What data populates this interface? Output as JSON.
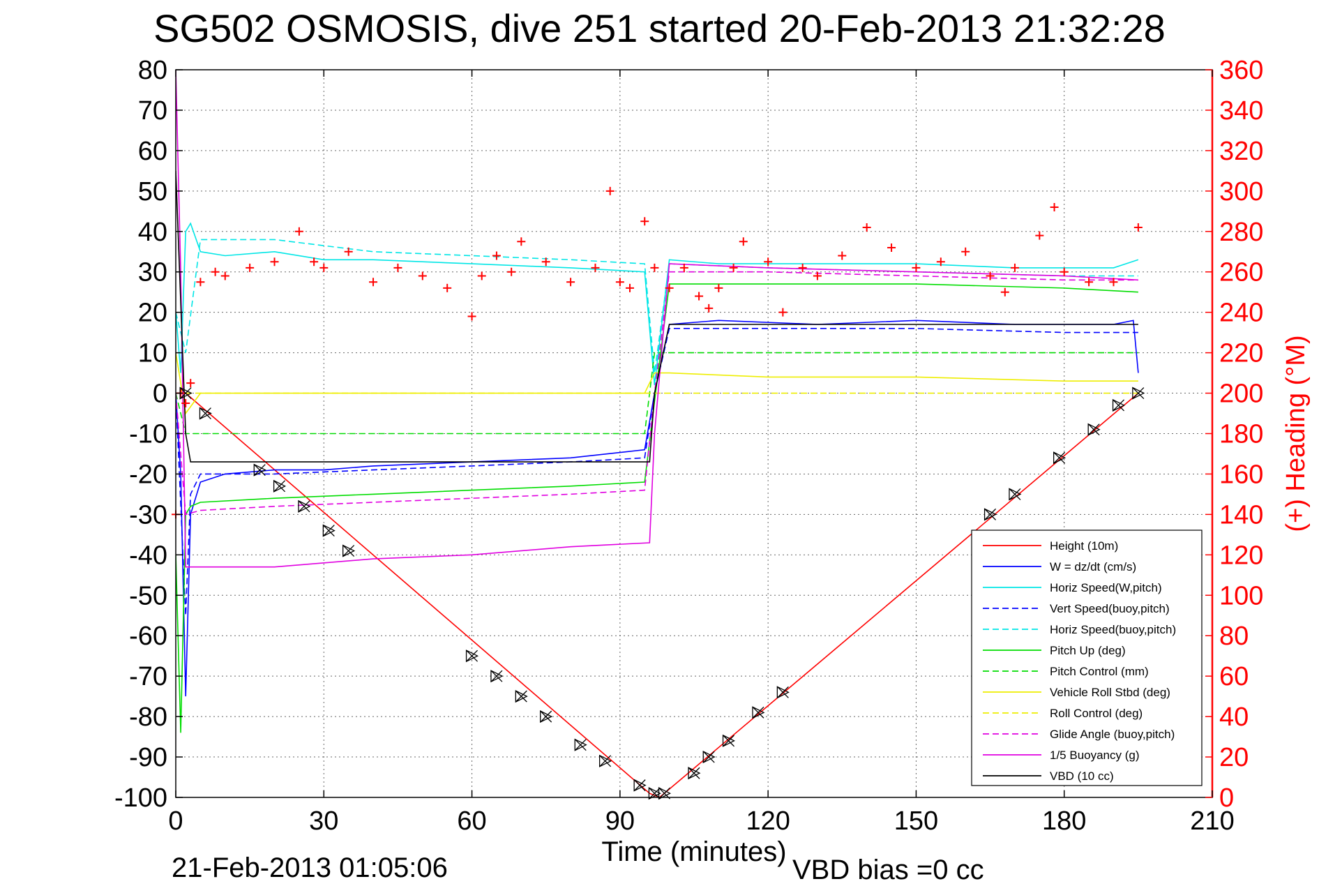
{
  "title": "SG502 OSMOSIS, dive 251 started 20-Feb-2013 21:32:28",
  "footer": {
    "timestamp": "21-Feb-2013 01:05:06",
    "vbd_bias": "VBD bias =0 cc"
  },
  "chart_data": {
    "type": "line",
    "title": "SG502 OSMOSIS, dive 251 started 20-Feb-2013 21:32:28",
    "xlabel": "Time (minutes)",
    "ylabel": "",
    "ylabel_right": "(+) Heading (°M)",
    "xlim": [
      0,
      210
    ],
    "ylim": [
      -100,
      80
    ],
    "ylim_right": [
      0,
      360
    ],
    "xticks": [
      0,
      30,
      60,
      90,
      120,
      150,
      180,
      210
    ],
    "yticks": [
      -100,
      -90,
      -80,
      -70,
      -60,
      -50,
      -40,
      -30,
      -20,
      -10,
      0,
      10,
      20,
      30,
      40,
      50,
      60,
      70,
      80
    ],
    "yticks_right": [
      0,
      20,
      40,
      60,
      80,
      100,
      120,
      140,
      160,
      180,
      200,
      220,
      240,
      260,
      280,
      300,
      320,
      340,
      360
    ],
    "grid": true,
    "legend_position": "bottom-right",
    "series": [
      {
        "name": "Height (10m)",
        "color": "#ff0000",
        "style": "solid",
        "x": [
          0,
          2,
          96,
          98,
          195
        ],
        "y": [
          0,
          0,
          -99,
          -100,
          0
        ]
      },
      {
        "name": "W = dz/dt (cm/s)",
        "color": "#0000ff",
        "style": "solid",
        "x": [
          0,
          1,
          2,
          3,
          5,
          10,
          20,
          30,
          40,
          60,
          80,
          95,
          97,
          100,
          110,
          130,
          150,
          170,
          190,
          194,
          195
        ],
        "y": [
          0,
          -20,
          -75,
          -30,
          -22,
          -20,
          -19,
          -19,
          -18,
          -17,
          -16,
          -14,
          0,
          17,
          18,
          17,
          18,
          17,
          17,
          18,
          5
        ]
      },
      {
        "name": "Horiz Speed(W,pitch)",
        "color": "#00e6e6",
        "style": "solid",
        "x": [
          0,
          1,
          2,
          3,
          5,
          10,
          20,
          30,
          40,
          60,
          80,
          95,
          97,
          100,
          110,
          130,
          150,
          170,
          190,
          195
        ],
        "y": [
          20,
          5,
          40,
          42,
          35,
          34,
          35,
          33,
          33,
          32,
          31,
          30,
          2,
          33,
          32,
          32,
          32,
          31,
          31,
          33
        ]
      },
      {
        "name": "Vert Speed(buoy,pitch)",
        "color": "#0000ff",
        "style": "dashed",
        "x": [
          0,
          2,
          3,
          5,
          20,
          40,
          60,
          80,
          95,
          97,
          100,
          120,
          150,
          180,
          195
        ],
        "y": [
          0,
          -55,
          -25,
          -20,
          -20,
          -19,
          -18,
          -17,
          -16,
          0,
          16,
          16,
          16,
          15,
          15
        ]
      },
      {
        "name": "Horiz Speed(buoy,pitch)",
        "color": "#00e6e6",
        "style": "dashed",
        "x": [
          0,
          2,
          5,
          20,
          40,
          60,
          80,
          95,
          97,
          100,
          120,
          150,
          180,
          195
        ],
        "y": [
          20,
          10,
          38,
          38,
          35,
          34,
          33,
          32,
          5,
          32,
          31,
          30,
          29,
          29
        ]
      },
      {
        "name": "Pitch Up (deg)",
        "color": "#00dd00",
        "style": "solid",
        "x": [
          0,
          1,
          2,
          3,
          5,
          20,
          40,
          60,
          80,
          95,
          97,
          100,
          120,
          150,
          180,
          195
        ],
        "y": [
          -40,
          -84,
          -30,
          -28,
          -27,
          -26,
          -25,
          -24,
          -23,
          -22,
          -2,
          27,
          27,
          27,
          26,
          25
        ]
      },
      {
        "name": "Pitch Control (mm)",
        "color": "#00dd00",
        "style": "dashed",
        "x": [
          0,
          2,
          5,
          95,
          97,
          100,
          195
        ],
        "y": [
          0,
          -10,
          -10,
          -10,
          10,
          10,
          10
        ]
      },
      {
        "name": "Vehicle Roll Stbd (deg)",
        "color": "#eeee00",
        "style": "solid",
        "x": [
          0,
          2,
          5,
          20,
          40,
          60,
          80,
          95,
          97,
          100,
          120,
          150,
          180,
          195
        ],
        "y": [
          10,
          -5,
          0,
          0,
          0,
          0,
          0,
          0,
          5,
          5,
          4,
          4,
          3,
          3
        ]
      },
      {
        "name": "Roll Control (deg)",
        "color": "#eeee00",
        "style": "dashed",
        "x": [
          0,
          5,
          30,
          60,
          95,
          100,
          150,
          195
        ],
        "y": [
          0,
          0,
          0,
          0,
          0,
          0,
          0,
          0
        ]
      },
      {
        "name": "Glide Angle (buoy,pitch)",
        "color": "#e000e0",
        "style": "dashed",
        "x": [
          0,
          2,
          5,
          20,
          40,
          60,
          80,
          95,
          97,
          100,
          120,
          150,
          180,
          195
        ],
        "y": [
          0,
          -30,
          -29,
          -28,
          -27,
          -26,
          -25,
          -24,
          0,
          30,
          30,
          29,
          28,
          28
        ]
      },
      {
        "name": "1/5 Buoyancy (g)",
        "color": "#e000e0",
        "style": "solid",
        "x": [
          0,
          1,
          2,
          20,
          40,
          60,
          80,
          96,
          97,
          100,
          120,
          150,
          180,
          195
        ],
        "y": [
          80,
          30,
          -43,
          -43,
          -41,
          -40,
          -38,
          -37,
          -10,
          32,
          31,
          30,
          29,
          28
        ]
      },
      {
        "name": "VBD (10 cc)",
        "color": "#000000",
        "style": "solid",
        "x": [
          0,
          2,
          3,
          96,
          97,
          100,
          195
        ],
        "y": [
          55,
          -10,
          -17,
          -17,
          0,
          17,
          17
        ]
      }
    ],
    "heading_series": {
      "name": "(+) Heading (°M)",
      "color": "#ff0000",
      "marker": "+",
      "x": [
        0,
        1,
        2,
        3,
        5,
        8,
        10,
        15,
        20,
        25,
        28,
        30,
        35,
        40,
        45,
        50,
        55,
        60,
        62,
        65,
        68,
        70,
        75,
        80,
        85,
        88,
        90,
        92,
        95,
        97,
        100,
        103,
        106,
        108,
        110,
        113,
        115,
        120,
        123,
        127,
        130,
        135,
        140,
        145,
        150,
        155,
        160,
        165,
        168,
        170,
        175,
        178,
        180,
        185,
        190,
        195
      ],
      "y": [
        140,
        200,
        195,
        205,
        255,
        260,
        258,
        262,
        265,
        280,
        265,
        262,
        270,
        255,
        262,
        258,
        252,
        238,
        258,
        268,
        260,
        275,
        265,
        255,
        262,
        300,
        255,
        252,
        285,
        262,
        252,
        262,
        248,
        242,
        252,
        262,
        275,
        265,
        240,
        262,
        258,
        268,
        282,
        272,
        262,
        265,
        270,
        258,
        250,
        262,
        278,
        292,
        260,
        255,
        255,
        282
      ]
    },
    "markers": {
      "symbol": "triangle-with-x",
      "x": [
        2,
        6,
        17,
        21,
        26,
        31,
        35,
        60,
        65,
        70,
        75,
        82,
        87,
        94,
        97,
        99,
        105,
        108,
        112,
        118,
        123,
        165,
        170,
        179,
        186,
        191,
        195
      ],
      "y": [
        0,
        -5,
        -19,
        -23,
        -28,
        -34,
        -39,
        -65,
        -70,
        -75,
        -80,
        -87,
        -91,
        -97,
        -99,
        -99,
        -94,
        -90,
        -86,
        -79,
        -74,
        -30,
        -25,
        -16,
        -9,
        -3,
        0
      ]
    }
  }
}
